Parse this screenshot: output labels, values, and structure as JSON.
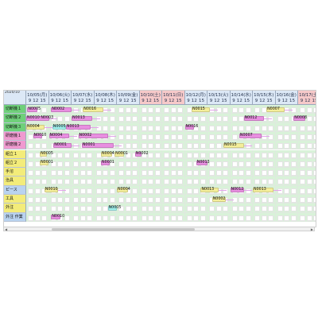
{
  "header": {
    "month": "2020/10"
  },
  "hours_label": "9  12  15",
  "days": [
    {
      "label": "10/05(月)",
      "weekend": false
    },
    {
      "label": "10/06(火)",
      "weekend": false
    },
    {
      "label": "10/07(水)",
      "weekend": false
    },
    {
      "label": "10/08(木)",
      "weekend": false
    },
    {
      "label": "10/09(金)",
      "weekend": false
    },
    {
      "label": "10/10(土)",
      "weekend": true
    },
    {
      "label": "10/11(日)",
      "weekend": true
    },
    {
      "label": "10/12(月)",
      "weekend": false
    },
    {
      "label": "10/13(火)",
      "weekend": false
    },
    {
      "label": "10/14(水)",
      "weekend": false
    },
    {
      "label": "10/15(木)",
      "weekend": false
    },
    {
      "label": "10/16(金)",
      "weekend": false
    },
    {
      "label": "10/17(土)",
      "weekend": true
    }
  ],
  "resources": [
    {
      "name": "切断機１",
      "color": "#6fd07a"
    },
    {
      "name": "切断機２",
      "color": "#6fd07a"
    },
    {
      "name": "切断機３",
      "color": "#6fd07a"
    },
    {
      "name": "研磨機１",
      "color": "#f09ad0"
    },
    {
      "name": "研磨機２",
      "color": "#f09ad0"
    },
    {
      "name": "組立１",
      "color": "#f3ec7a"
    },
    {
      "name": "組立２",
      "color": "#f3ec7a"
    },
    {
      "name": "手溶",
      "color": "#f3ec7a"
    },
    {
      "name": "治具",
      "color": "#f3ec7a"
    },
    {
      "name": "ピース",
      "color": "#b9d3f0"
    },
    {
      "name": "工具",
      "color": "#f3ec7a"
    },
    {
      "name": "外注",
      "color": "#f3ec7a"
    },
    {
      "name": "外注 作業",
      "color": "#b9d3f0"
    }
  ],
  "colors": {
    "pink": "#e88fe0",
    "yellow": "#f4ee9a",
    "teal": "#9ff0ec",
    "grid": "#d9f2d9",
    "weekend_head": "#f6c9c9",
    "weekday_head": "#dce8f6"
  },
  "tasks": [
    {
      "row": 0,
      "day": 0.05,
      "len": 0.45,
      "color": "pink",
      "label": "N0005"
    },
    {
      "row": 0,
      "day": 1.1,
      "len": 0.9,
      "color": "pink",
      "label": "N0002"
    },
    {
      "row": 0,
      "day": 2.5,
      "len": 0.9,
      "color": "yellow",
      "label": "N0016"
    },
    {
      "row": 0,
      "day": 7.3,
      "len": 0.8,
      "color": "yellow",
      "label": "N0015"
    },
    {
      "row": 0,
      "day": 10.6,
      "len": 0.8,
      "color": "yellow",
      "label": "N0007"
    },
    {
      "row": 1,
      "day": 0.0,
      "len": 1.0,
      "color": "pink",
      "label": "N0010 N0003"
    },
    {
      "row": 1,
      "day": 2.0,
      "len": 0.9,
      "color": "pink",
      "label": "N0013"
    },
    {
      "row": 1,
      "day": 9.6,
      "len": 0.9,
      "color": "pink",
      "label": "N0012"
    },
    {
      "row": 1,
      "day": 11.8,
      "len": 0.5,
      "color": "pink",
      "label": "N0008"
    },
    {
      "row": 2,
      "day": 0.0,
      "len": 0.8,
      "color": "yellow",
      "label": "N0004"
    },
    {
      "row": 2,
      "day": 1.15,
      "len": 0.6,
      "color": "teal",
      "label": "N0005"
    },
    {
      "row": 2,
      "day": 1.75,
      "len": 1.1,
      "color": "pink",
      "label": "N0013"
    },
    {
      "row": 2,
      "day": 7.0,
      "len": 0.4,
      "color": "pink",
      "label": "N0016"
    },
    {
      "row": 3,
      "day": 0.3,
      "len": 0.4,
      "color": "pink",
      "label": "N0010"
    },
    {
      "row": 3,
      "day": 1.0,
      "len": 0.9,
      "color": "pink",
      "label": "N0004"
    },
    {
      "row": 3,
      "day": 2.3,
      "len": 1.3,
      "color": "pink",
      "label": "N0002"
    },
    {
      "row": 3,
      "day": 9.4,
      "len": 1.0,
      "color": "pink",
      "label": "N0007"
    },
    {
      "row": 4,
      "day": 1.2,
      "len": 0.8,
      "color": "pink",
      "label": "N0001"
    },
    {
      "row": 4,
      "day": 2.45,
      "len": 1.4,
      "color": "pink",
      "label": "N0001"
    },
    {
      "row": 4,
      "day": 8.7,
      "len": 0.9,
      "color": "yellow",
      "label": "N0015"
    },
    {
      "row": 5,
      "day": 0.6,
      "len": 0.3,
      "color": "yellow",
      "label": "N0005"
    },
    {
      "row": 5,
      "day": 3.3,
      "len": 0.5,
      "color": "yellow",
      "label": "N0004"
    },
    {
      "row": 5,
      "day": 3.9,
      "len": 0.4,
      "color": "yellow",
      "label": "N0001"
    },
    {
      "row": 5,
      "day": 4.8,
      "len": 0.3,
      "color": "pink",
      "label": "N0002"
    },
    {
      "row": 6,
      "day": 0.6,
      "len": 0.4,
      "color": "yellow",
      "label": "N0001"
    },
    {
      "row": 6,
      "day": 3.3,
      "len": 0.4,
      "color": "pink",
      "label": "N0001"
    },
    {
      "row": 6,
      "day": 7.5,
      "len": 0.5,
      "color": "pink",
      "label": "N0013"
    },
    {
      "row": 9,
      "day": 0.8,
      "len": 0.6,
      "color": "yellow",
      "label": "N0010"
    },
    {
      "row": 9,
      "day": 4.0,
      "len": 0.5,
      "color": "yellow",
      "label": "N0004"
    },
    {
      "row": 9,
      "day": 7.7,
      "len": 0.8,
      "color": "yellow",
      "label": "N0013"
    },
    {
      "row": 9,
      "day": 9.0,
      "len": 0.6,
      "color": "pink",
      "label": "N0012"
    },
    {
      "row": 9,
      "day": 10.0,
      "len": 0.9,
      "color": "yellow",
      "label": "N0013"
    },
    {
      "row": 10,
      "day": 8.2,
      "len": 0.6,
      "color": "yellow",
      "label": "N0002"
    },
    {
      "row": 11,
      "day": 3.6,
      "len": 0.4,
      "color": "teal",
      "label": "N0005"
    },
    {
      "row": 12,
      "day": 1.1,
      "len": 0.4,
      "color": "pink",
      "label": "N0010"
    }
  ]
}
